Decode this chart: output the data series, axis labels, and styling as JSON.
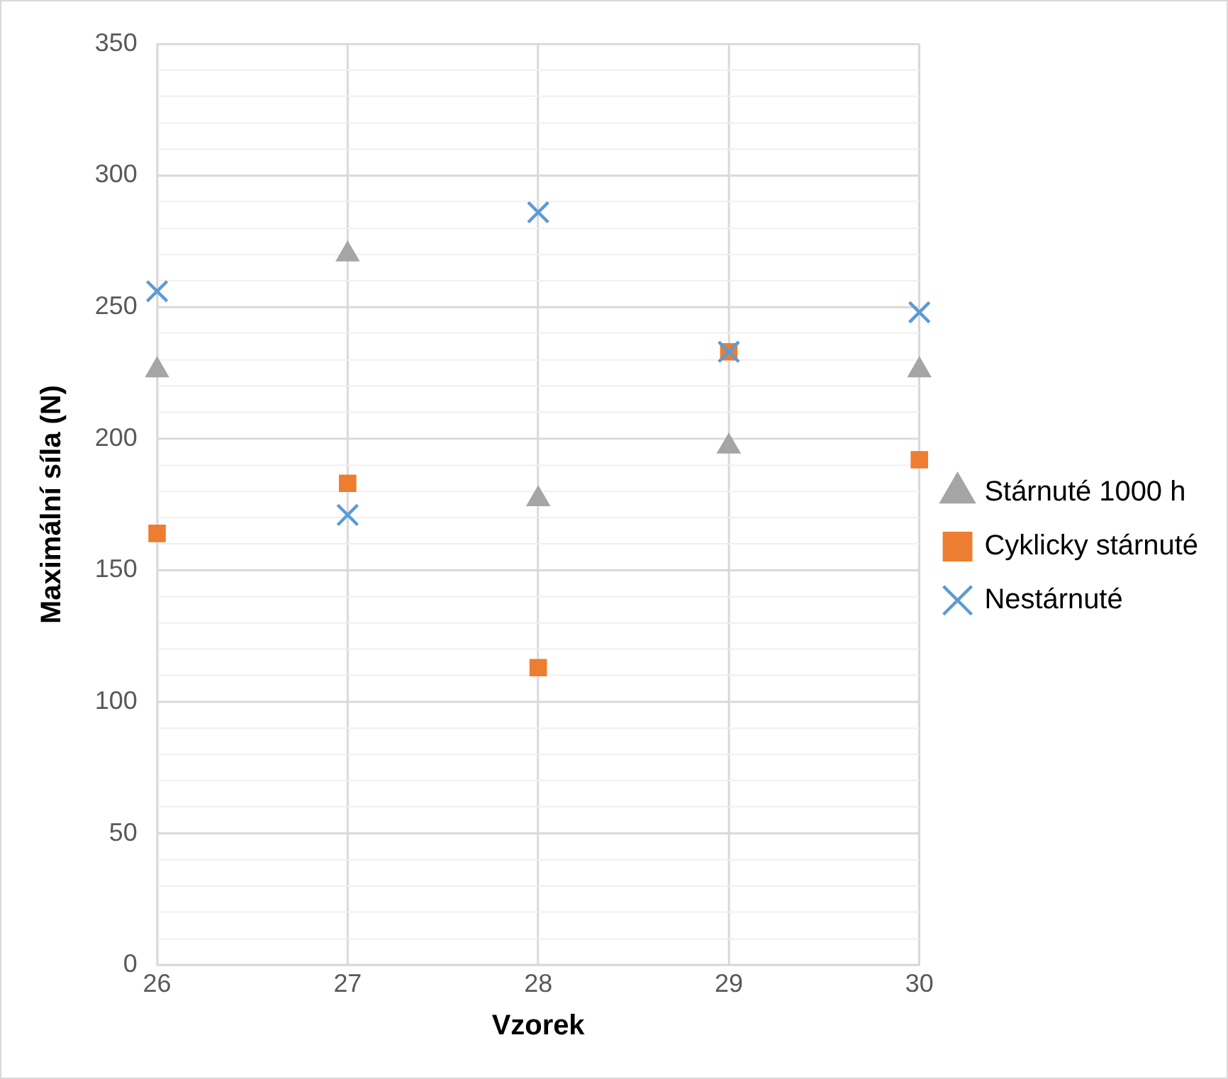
{
  "chart_data": {
    "type": "scatter",
    "xlabel": "Vzorek",
    "ylabel": "Maximální síla (N)",
    "x": [
      26,
      27,
      28,
      29,
      30
    ],
    "series": [
      {
        "name": "Stárnuté 1000 h",
        "color": "#a5a5a5",
        "marker": "triangle",
        "values": [
          226,
          270,
          177,
          197,
          226
        ]
      },
      {
        "name": "Cyklicky stárnuté",
        "color": "#ed7d31",
        "marker": "square",
        "values": [
          164,
          183,
          113,
          233,
          192
        ]
      },
      {
        "name": "Nestárnuté",
        "color": "#5b9bd5",
        "marker": "cross",
        "values": [
          256,
          171,
          286,
          233,
          248
        ]
      }
    ],
    "xlim": [
      26,
      30
    ],
    "xticks": [
      26,
      27,
      28,
      29,
      30
    ],
    "ylim": [
      0,
      350
    ],
    "yticks": [
      0,
      {
        "value": 10,
        "label": null
      },
      {
        "value": 20,
        "label": null
      },
      {
        "value": 30,
        "label": null
      },
      {
        "value": 40,
        "label": null
      },
      50,
      {
        "value": 60,
        "label": null
      },
      {
        "value": 70,
        "label": null
      },
      {
        "value": 80,
        "label": null
      },
      {
        "value": 90,
        "label": null
      },
      100,
      {
        "value": 110,
        "label": null
      },
      {
        "value": 120,
        "label": null
      },
      {
        "value": 130,
        "label": null
      },
      {
        "value": 140,
        "label": null
      },
      150,
      {
        "value": 160,
        "label": null
      },
      {
        "value": 170,
        "label": null
      },
      {
        "value": 180,
        "label": null
      },
      {
        "value": 190,
        "label": null
      },
      200,
      {
        "value": 210,
        "label": null
      },
      {
        "value": 220,
        "label": null
      },
      {
        "value": 230,
        "label": null
      },
      {
        "value": 240,
        "label": null
      },
      250,
      {
        "value": 260,
        "label": null
      },
      {
        "value": 270,
        "label": null
      },
      {
        "value": 280,
        "label": null
      },
      {
        "value": 290,
        "label": null
      },
      300,
      {
        "value": 310,
        "label": null
      },
      {
        "value": 320,
        "label": null
      },
      {
        "value": 330,
        "label": null
      },
      {
        "value": 340,
        "label": null
      },
      350
    ],
    "grid": true,
    "legend": "right"
  }
}
